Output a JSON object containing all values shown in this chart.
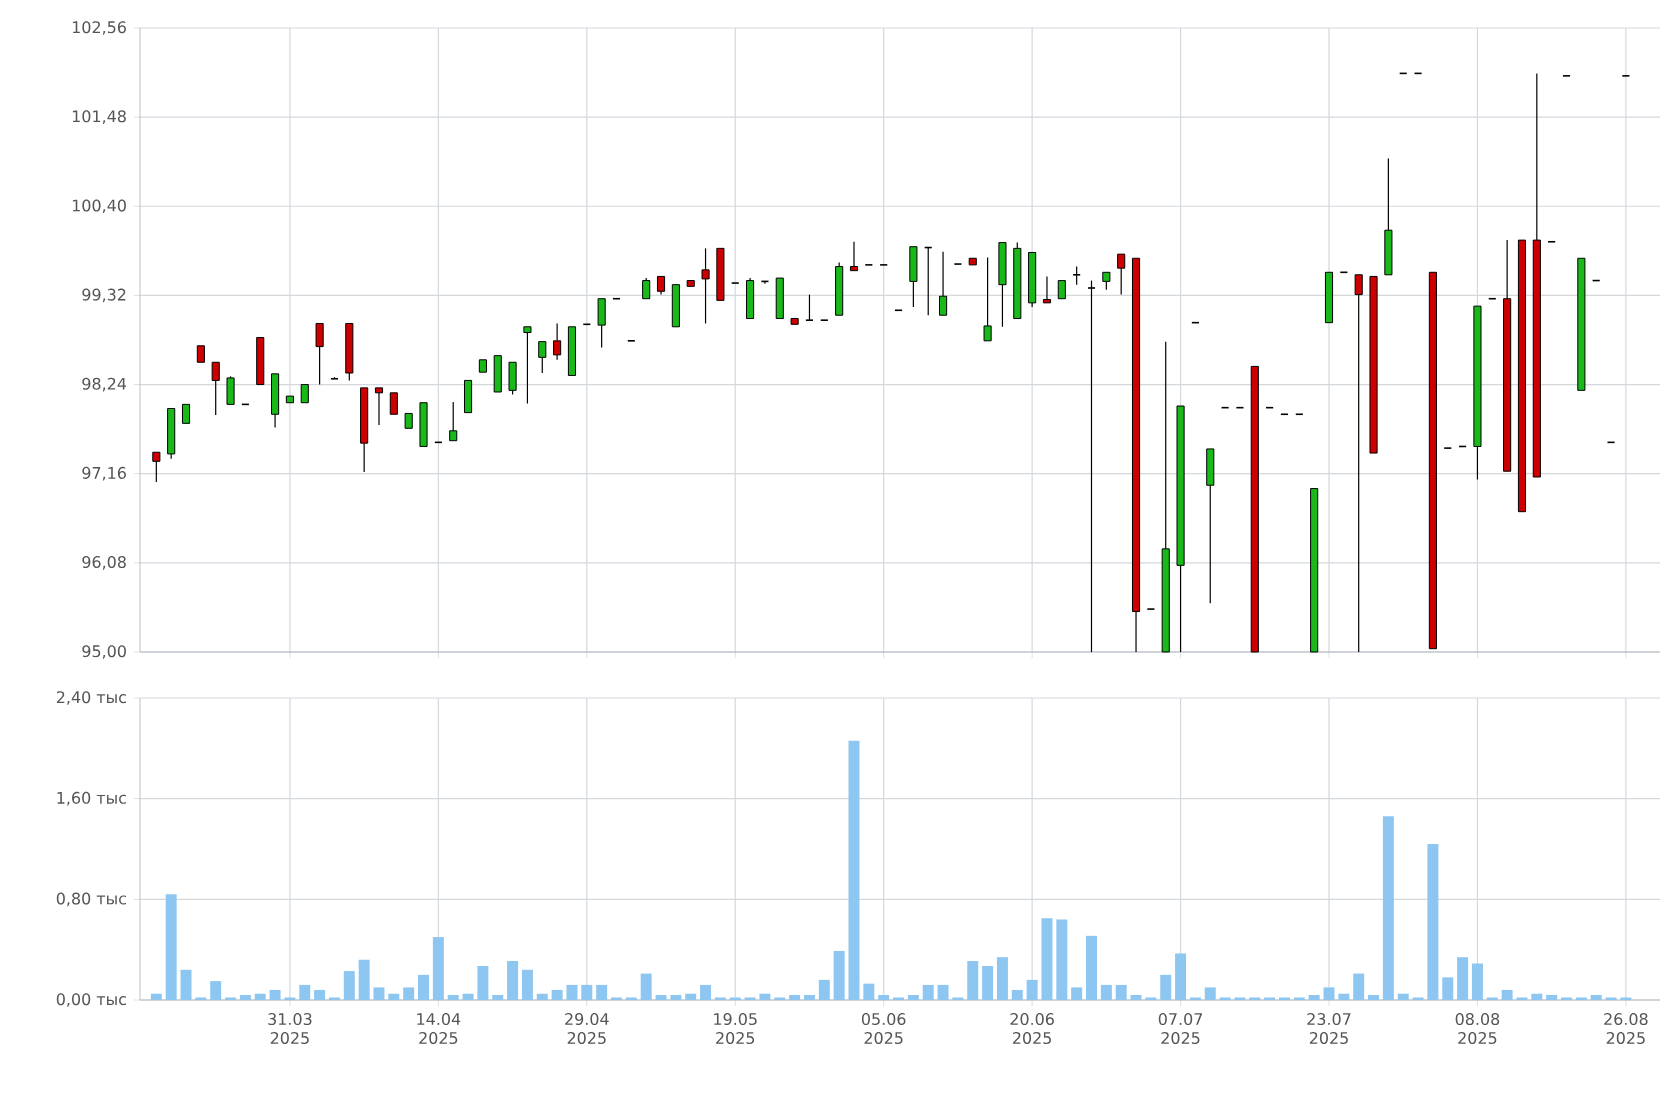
{
  "chart_data": [
    {
      "type": "candlestick",
      "ohlc": [
        [
          97.42,
          97.42,
          97.06,
          97.31
        ],
        [
          97.4,
          97.95,
          97.34,
          97.95
        ],
        [
          97.77,
          98.0,
          97.77,
          98.0
        ],
        [
          98.71,
          98.71,
          98.51,
          98.51
        ],
        [
          98.51,
          98.51,
          97.87,
          98.29
        ],
        [
          98.0,
          98.34,
          98.0,
          98.32
        ],
        [
          98.0,
          98.0,
          98.0,
          98.0
        ],
        [
          98.81,
          98.81,
          98.24,
          98.24
        ],
        [
          97.88,
          98.37,
          97.72,
          98.37
        ],
        [
          98.02,
          98.1,
          98.02,
          98.1
        ],
        [
          98.02,
          98.24,
          98.02,
          98.24
        ],
        [
          98.98,
          98.98,
          98.24,
          98.7
        ],
        [
          98.31,
          98.33,
          98.31,
          98.31
        ],
        [
          98.98,
          98.98,
          98.29,
          98.38
        ],
        [
          98.2,
          98.2,
          97.18,
          97.53
        ],
        [
          98.2,
          98.2,
          97.75,
          98.14
        ],
        [
          98.14,
          98.14,
          97.88,
          97.88
        ],
        [
          97.71,
          97.89,
          97.71,
          97.89
        ],
        [
          97.49,
          98.02,
          97.49,
          98.02
        ],
        [
          97.54,
          97.54,
          97.54,
          97.54
        ],
        [
          97.56,
          98.03,
          97.56,
          97.68
        ],
        [
          97.9,
          98.29,
          97.9,
          98.29
        ],
        [
          98.39,
          98.54,
          98.39,
          98.54
        ],
        [
          98.15,
          98.59,
          98.15,
          98.59
        ],
        [
          98.17,
          98.51,
          98.12,
          98.51
        ],
        [
          98.87,
          98.94,
          98.01,
          98.94
        ],
        [
          98.57,
          98.76,
          98.38,
          98.76
        ],
        [
          98.77,
          98.98,
          98.54,
          98.6
        ],
        [
          98.35,
          98.94,
          98.35,
          98.94
        ],
        [
          98.97,
          98.97,
          98.97,
          98.97
        ],
        [
          98.96,
          99.28,
          98.69,
          99.28
        ],
        [
          99.28,
          99.28,
          99.28,
          99.28
        ],
        [
          98.77,
          98.77,
          98.77,
          98.77
        ],
        [
          99.28,
          99.53,
          99.28,
          99.5
        ],
        [
          99.55,
          99.55,
          99.33,
          99.37
        ],
        [
          98.94,
          99.45,
          98.94,
          99.45
        ],
        [
          99.5,
          99.5,
          99.43,
          99.43
        ],
        [
          99.63,
          99.89,
          98.98,
          99.52
        ],
        [
          99.89,
          99.89,
          99.26,
          99.26
        ],
        [
          99.47,
          99.47,
          99.47,
          99.47
        ],
        [
          99.04,
          99.53,
          99.04,
          99.5
        ],
        [
          99.49,
          99.49,
          99.46,
          99.49
        ],
        [
          99.04,
          99.53,
          99.04,
          99.53
        ],
        [
          99.04,
          99.04,
          98.97,
          98.97
        ],
        [
          99.02,
          99.33,
          99.02,
          99.02
        ],
        [
          99.02,
          99.02,
          99.02,
          99.02
        ],
        [
          99.08,
          99.72,
          99.08,
          99.67
        ],
        [
          99.67,
          99.97,
          99.62,
          99.62
        ],
        [
          99.69,
          99.69,
          99.69,
          99.69
        ],
        [
          99.69,
          99.69,
          99.69,
          99.69
        ],
        [
          99.14,
          99.14,
          99.14,
          99.14
        ],
        [
          99.49,
          99.91,
          99.18,
          99.91
        ],
        [
          99.9,
          99.9,
          99.08,
          99.9
        ],
        [
          99.08,
          99.85,
          99.08,
          99.31
        ],
        [
          99.7,
          99.7,
          99.7,
          99.7
        ],
        [
          99.77,
          99.77,
          99.69,
          99.69
        ],
        [
          98.77,
          99.78,
          98.77,
          98.95
        ],
        [
          99.45,
          99.96,
          98.94,
          99.96
        ],
        [
          99.04,
          99.96,
          99.04,
          99.89
        ],
        [
          99.23,
          99.84,
          99.18,
          99.84
        ],
        [
          99.27,
          99.55,
          99.23,
          99.23
        ],
        [
          99.28,
          99.5,
          99.28,
          99.5
        ],
        [
          99.57,
          99.67,
          99.45,
          99.57
        ],
        [
          99.41,
          99.5,
          95.0,
          99.41
        ],
        [
          99.49,
          99.6,
          99.39,
          99.6
        ],
        [
          99.82,
          99.82,
          99.33,
          99.65
        ],
        [
          99.77,
          99.77,
          95.0,
          95.49
        ],
        [
          95.52,
          95.52,
          95.52,
          95.52
        ],
        [
          95.0,
          98.76,
          95.0,
          96.25
        ],
        [
          96.05,
          97.98,
          95.0,
          97.98
        ],
        [
          98.99,
          98.99,
          98.99,
          98.99
        ],
        [
          97.02,
          97.46,
          95.59,
          97.46
        ],
        [
          97.96,
          97.96,
          97.96,
          97.96
        ],
        [
          97.96,
          97.96,
          97.96,
          97.96
        ],
        [
          98.46,
          98.46,
          95.0,
          95.0
        ],
        [
          97.96,
          97.96,
          97.96,
          97.96
        ],
        [
          97.88,
          97.88,
          97.88,
          97.88
        ],
        [
          97.88,
          97.88,
          97.88,
          97.88
        ],
        [
          95.0,
          96.98,
          95.0,
          96.98
        ],
        [
          98.99,
          99.6,
          98.99,
          99.6
        ],
        [
          99.6,
          99.6,
          99.6,
          99.6
        ],
        [
          99.57,
          99.57,
          95.0,
          99.33
        ],
        [
          99.55,
          99.55,
          97.41,
          97.41
        ],
        [
          99.57,
          100.98,
          99.57,
          100.11
        ],
        [
          102.01,
          102.01,
          102.01,
          102.01
        ],
        [
          102.01,
          102.01,
          102.01,
          102.01
        ],
        [
          99.6,
          99.6,
          95.04,
          95.04
        ],
        [
          97.47,
          97.47,
          97.47,
          97.47
        ],
        [
          97.49,
          97.49,
          97.49,
          97.49
        ],
        [
          97.49,
          99.19,
          97.09,
          99.19
        ],
        [
          99.28,
          99.28,
          99.28,
          99.28
        ],
        [
          99.28,
          99.99,
          97.19,
          97.19
        ],
        [
          99.99,
          99.99,
          96.7,
          96.7
        ],
        [
          99.99,
          102.01,
          97.12,
          97.12
        ],
        [
          99.97,
          99.97,
          99.97,
          99.97
        ],
        [
          101.98,
          101.98,
          101.98,
          101.98
        ],
        [
          98.17,
          99.77,
          98.17,
          99.77
        ],
        [
          99.5,
          99.5,
          99.5,
          99.5
        ],
        [
          97.54,
          97.54,
          97.54,
          97.54
        ],
        [
          101.98,
          101.98,
          101.98,
          101.98
        ]
      ],
      "ylim": [
        95.0,
        102.56
      ],
      "yticks": [
        {
          "value": 95.0,
          "label": "95,00"
        },
        {
          "value": 96.08,
          "label": "96,08"
        },
        {
          "value": 97.16,
          "label": "97,16"
        },
        {
          "value": 98.24,
          "label": "98,24"
        },
        {
          "value": 99.32,
          "label": "99,32"
        },
        {
          "value": 100.4,
          "label": "100,40"
        },
        {
          "value": 101.48,
          "label": "101,48"
        },
        {
          "value": 102.56,
          "label": "102,56"
        }
      ],
      "grid": true,
      "tick_labels": "y"
    },
    {
      "type": "bar",
      "categories": [
        null,
        null,
        null,
        null,
        null,
        null,
        null,
        null,
        null,
        "31.03 2025",
        null,
        null,
        null,
        null,
        null,
        null,
        null,
        null,
        null,
        "14.04 2025",
        null,
        null,
        null,
        null,
        null,
        null,
        null,
        null,
        null,
        "29.04 2025",
        null,
        null,
        null,
        null,
        null,
        null,
        null,
        null,
        null,
        "19.05 2025",
        null,
        null,
        null,
        null,
        null,
        null,
        null,
        null,
        null,
        "05.06 2025",
        null,
        null,
        null,
        null,
        null,
        null,
        null,
        null,
        null,
        "20.06 2025",
        null,
        null,
        null,
        null,
        null,
        null,
        null,
        null,
        null,
        "07.07 2025",
        null,
        null,
        null,
        null,
        null,
        null,
        null,
        null,
        null,
        "23.07 2025",
        null,
        null,
        null,
        null,
        null,
        null,
        null,
        null,
        null,
        "08.08 2025",
        null,
        null,
        null,
        null,
        null,
        null,
        null,
        null,
        null,
        "26.08 2025"
      ],
      "values": [
        0.05,
        0.84,
        0.24,
        0.02,
        0.15,
        0.02,
        0.04,
        0.05,
        0.08,
        0.02,
        0.12,
        0.08,
        0.02,
        0.23,
        0.32,
        0.1,
        0.05,
        0.1,
        0.2,
        0.5,
        0.04,
        0.05,
        0.27,
        0.04,
        0.31,
        0.24,
        0.05,
        0.08,
        0.12,
        0.12,
        0.12,
        0.02,
        0.02,
        0.21,
        0.04,
        0.04,
        0.05,
        0.12,
        0.02,
        0.02,
        0.02,
        0.05,
        0.02,
        0.04,
        0.04,
        0.16,
        0.39,
        2.06,
        0.13,
        0.04,
        0.02,
        0.04,
        0.12,
        0.12,
        0.02,
        0.31,
        0.27,
        0.34,
        0.08,
        0.16,
        0.65,
        0.64,
        0.1,
        0.51,
        0.12,
        0.12,
        0.04,
        0.02,
        0.2,
        0.37,
        0.02,
        0.1,
        0.02,
        0.02,
        0.02,
        0.02,
        0.02,
        0.02,
        0.04,
        0.1,
        0.05,
        0.21,
        0.04,
        1.46,
        0.05,
        0.02,
        1.24,
        0.18,
        0.34,
        0.29,
        0.02,
        0.08,
        0.02,
        0.05,
        0.04,
        0.02,
        0.02,
        0.04,
        0.02,
        0.02
      ],
      "color": "#8ec6f2",
      "ylim": [
        0,
        2.4
      ],
      "yticks": [
        {
          "value": 0,
          "label": "0,00 тыс"
        },
        {
          "value": 0.8,
          "label": "0,80 тыс"
        },
        {
          "value": 1.6,
          "label": "1,60 тыс"
        },
        {
          "value": 2.4,
          "label": "2,40 тыс"
        }
      ],
      "grid": true
    }
  ]
}
